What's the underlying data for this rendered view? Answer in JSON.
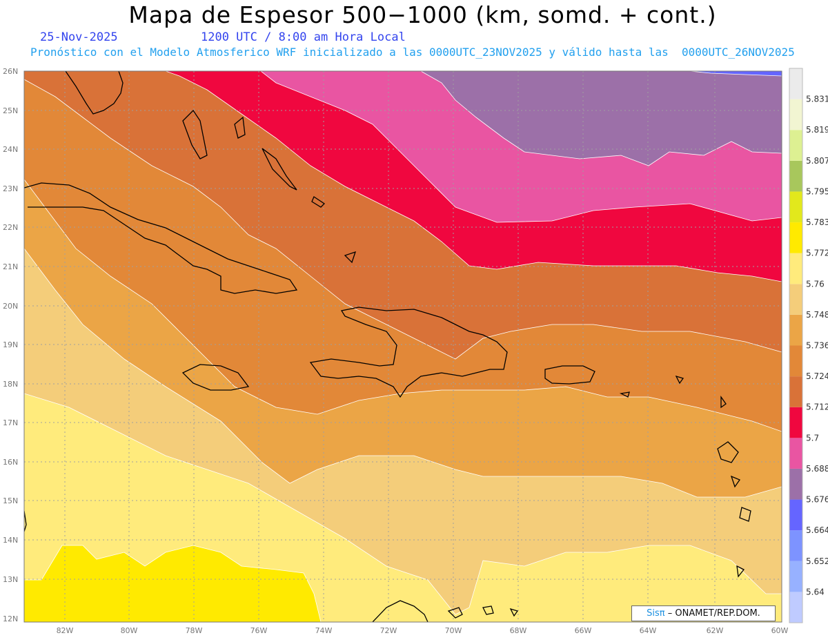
{
  "title": "Mapa de Espesor 500−1000 (km, somd. + cont.)",
  "date": "25-Nov-2025",
  "time": "1200 UTC / 8:00 am Hora Local",
  "subtitle": "Pronóstico con el Modelo Atmosferico WRF inicializado a las 0000UTC_23NOV2025 y válido hasta las  0000UTC_26NOV2025",
  "credit": {
    "logo": "Sisπ",
    "text": "– ONAMET/REP.DOM."
  },
  "latitudes": [
    "12N",
    "13N",
    "14N",
    "15N",
    "16N",
    "17N",
    "18N",
    "19N",
    "20N",
    "21N",
    "22N",
    "23N",
    "24N",
    "25N",
    "26N"
  ],
  "longitudes": [
    "82W",
    "80W",
    "78W",
    "76W",
    "74W",
    "72W",
    "70W",
    "68W",
    "66W",
    "64W",
    "62W",
    "60W"
  ],
  "colorbar": {
    "levels": [
      "5.64",
      "5.652",
      "5.664",
      "5.676",
      "5.688",
      "5.7",
      "5.712",
      "5.724",
      "5.736",
      "5.748",
      "5.76",
      "5.772",
      "5.783",
      "5.795",
      "5.807",
      "5.819",
      "5.831"
    ],
    "colors": [
      "#bfcbff",
      "#97b1ff",
      "#7d93ff",
      "#6565ff",
      "#9c70a8",
      "#e955a2",
      "#f0073f",
      "#d97238",
      "#e28838",
      "#eba546",
      "#f4cd7a",
      "#ffeb7c",
      "#ffea00",
      "#e2e81c",
      "#a8c75c",
      "#ddf092",
      "#f2f5d2",
      "#ebebeb"
    ]
  },
  "colors": {
    "coast": "#000000",
    "grid": "#a0a0a0",
    "contour": "#ffffff"
  }
}
